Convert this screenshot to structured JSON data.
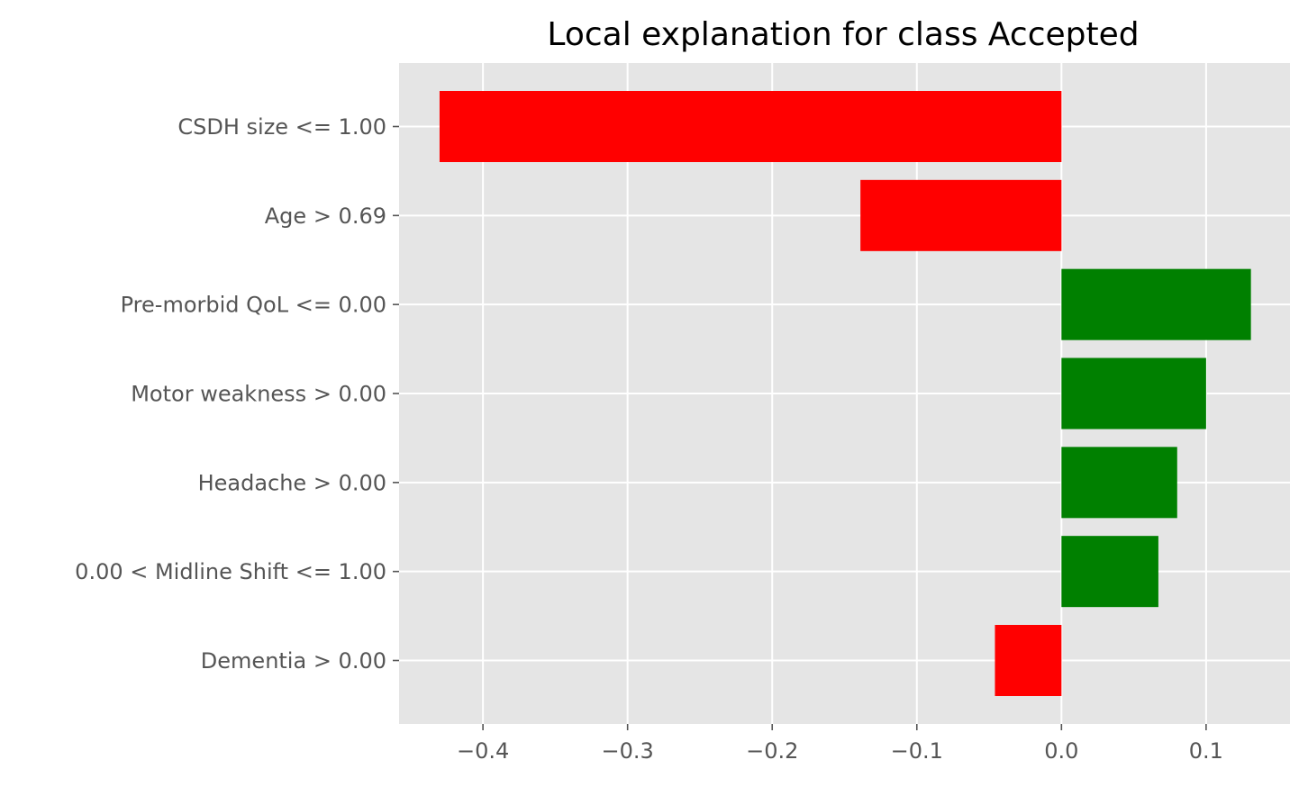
{
  "chart_data": {
    "type": "bar",
    "orientation": "horizontal",
    "title": "Local explanation for class Accepted",
    "xlabel": "",
    "ylabel": "",
    "categories": [
      "CSDH size <= 1.00",
      "Age > 0.69",
      "Pre-morbid QoL <= 0.00",
      "Motor weakness > 0.00",
      "Headache > 0.00",
      "0.00 < Midline Shift <= 1.00",
      "Dementia > 0.00"
    ],
    "values": [
      -0.43,
      -0.139,
      0.131,
      0.1,
      0.08,
      0.067,
      -0.046
    ],
    "xlim": [
      -0.458,
      0.158
    ],
    "xticks": [
      -0.4,
      -0.3,
      -0.2,
      -0.1,
      0.0,
      0.1
    ],
    "xtick_labels": [
      "−0.4",
      "−0.3",
      "−0.2",
      "−0.1",
      "0.0",
      "0.1"
    ],
    "grid": true,
    "colors": {
      "positive": "#008000",
      "negative": "#ff0000",
      "plot_background": "#e5e5e5",
      "grid": "#ffffff"
    }
  }
}
